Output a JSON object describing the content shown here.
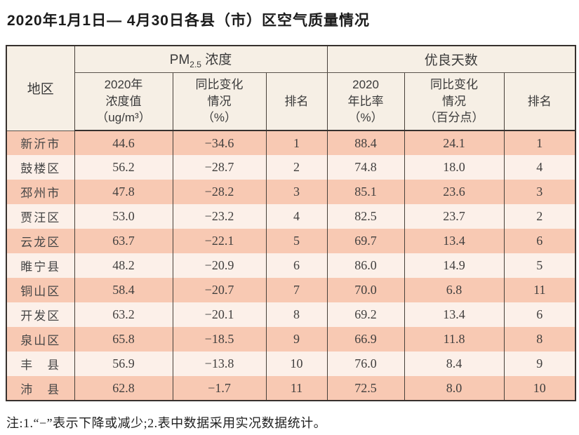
{
  "title": "2020年1月1日— 4月30日各县（市）区空气质量情况",
  "table": {
    "region_header": "地区",
    "pm_group": {
      "prefix": "PM",
      "sub": "2.5",
      "suffix": " 浓度"
    },
    "good_days_group": "优良天数",
    "sub_headers": {
      "pm_value": "2020年\n浓度值\n（ug/m³）",
      "pm_change": "同比变化\n情况\n（%）",
      "pm_rank": "排名",
      "good_ratio": "2020\n年比率\n（%）",
      "good_change": "同比变化\n情况\n（百分点）",
      "good_rank": "排名"
    },
    "rows": [
      {
        "region": "新沂市",
        "pm_value": "44.6",
        "pm_change": "−34.6",
        "pm_rank": "1",
        "good_ratio": "88.4",
        "good_change": "24.1",
        "good_rank": "1"
      },
      {
        "region": "鼓楼区",
        "pm_value": "56.2",
        "pm_change": "−28.7",
        "pm_rank": "2",
        "good_ratio": "74.8",
        "good_change": "18.0",
        "good_rank": "4"
      },
      {
        "region": "邳州市",
        "pm_value": "47.8",
        "pm_change": "−28.2",
        "pm_rank": "3",
        "good_ratio": "85.1",
        "good_change": "23.6",
        "good_rank": "3"
      },
      {
        "region": "贾汪区",
        "pm_value": "53.0",
        "pm_change": "−23.2",
        "pm_rank": "4",
        "good_ratio": "82.5",
        "good_change": "23.7",
        "good_rank": "2"
      },
      {
        "region": "云龙区",
        "pm_value": "63.7",
        "pm_change": "−22.1",
        "pm_rank": "5",
        "good_ratio": "69.7",
        "good_change": "13.4",
        "good_rank": "6"
      },
      {
        "region": "睢宁县",
        "pm_value": "48.2",
        "pm_change": "−20.9",
        "pm_rank": "6",
        "good_ratio": "86.0",
        "good_change": "14.9",
        "good_rank": "5"
      },
      {
        "region": "铜山区",
        "pm_value": "58.4",
        "pm_change": "−20.7",
        "pm_rank": "7",
        "good_ratio": "70.0",
        "good_change": "6.8",
        "good_rank": "11"
      },
      {
        "region": "开发区",
        "pm_value": "63.2",
        "pm_change": "−20.1",
        "pm_rank": "8",
        "good_ratio": "69.2",
        "good_change": "13.4",
        "good_rank": "6"
      },
      {
        "region": "泉山区",
        "pm_value": "65.8",
        "pm_change": "−18.5",
        "pm_rank": "9",
        "good_ratio": "66.9",
        "good_change": "11.8",
        "good_rank": "8"
      },
      {
        "region": "丰　县",
        "pm_value": "56.9",
        "pm_change": "−13.8",
        "pm_rank": "10",
        "good_ratio": "76.0",
        "good_change": "8.4",
        "good_rank": "9"
      },
      {
        "region": "沛　县",
        "pm_value": "62.8",
        "pm_change": "−1.7",
        "pm_rank": "11",
        "good_ratio": "72.5",
        "good_change": "8.0",
        "good_rank": "10"
      }
    ]
  },
  "note": "注:1.“−”表示下降或减少;2.表中数据采用实况数据统计。",
  "colors": {
    "row_odd": "#f8c9b3",
    "row_even": "#fcf0e9",
    "header_bg": "#f6efe5",
    "border": "#37312e"
  }
}
